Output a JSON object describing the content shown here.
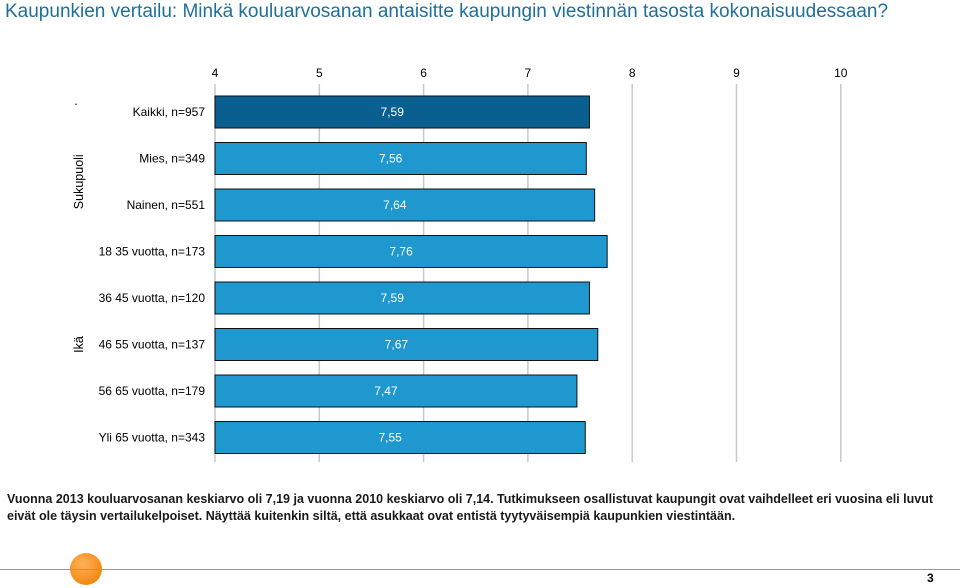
{
  "title": "Kaupunkien vertailu: Minkä kouluarvosanan antaisitte kaupungin viestinnän tasosta kokonaisuudessaan?",
  "footnote": "Vuonna 2013 kouluarvosanan keskiarvo oli 7,19 ja vuonna 2010 keskiarvo oli 7,14. Tutkimukseen osallistuvat kaupungit ovat vaihdelleet eri vuosina eli luvut eivät ole täysin vertailukelpoiset. Näyttää kuitenkin siltä, että asukkaat ovat entistä tyytyväisempiä kaupunkien viestintään.",
  "page_number": "3",
  "colors": {
    "title": "#1f6f9c",
    "total_bar": "#0a5f91",
    "bar": "#1f98cf",
    "grid": "#c8c8c8"
  },
  "chart_data": {
    "type": "bar",
    "orientation": "horizontal",
    "xlim": [
      4,
      10
    ],
    "xticks": [
      "4",
      "5",
      "6",
      "7",
      "8",
      "9",
      "10"
    ],
    "categories": [
      "Kaikki, n=957",
      "Mies, n=349",
      "Nainen, n=551",
      "18 35 vuotta, n=173",
      "36 45 vuotta, n=120",
      "46 55 vuotta, n=137",
      "56 65 vuotta, n=179",
      "Yli 65 vuotta, n=343"
    ],
    "values": [
      7.59,
      7.56,
      7.64,
      7.76,
      7.59,
      7.67,
      7.47,
      7.55
    ],
    "value_labels": [
      "7,59",
      "7,56",
      "7,64",
      "7,76",
      "7,59",
      "7,67",
      "7,47",
      "7,55"
    ],
    "groups": [
      {
        "label": "",
        "marker": "·",
        "members": [
          0
        ]
      },
      {
        "label": "Sukupuoli",
        "members": [
          1,
          2
        ]
      },
      {
        "label": "Ikä",
        "members": [
          3,
          4,
          5,
          6,
          7
        ]
      }
    ],
    "grid": true
  }
}
